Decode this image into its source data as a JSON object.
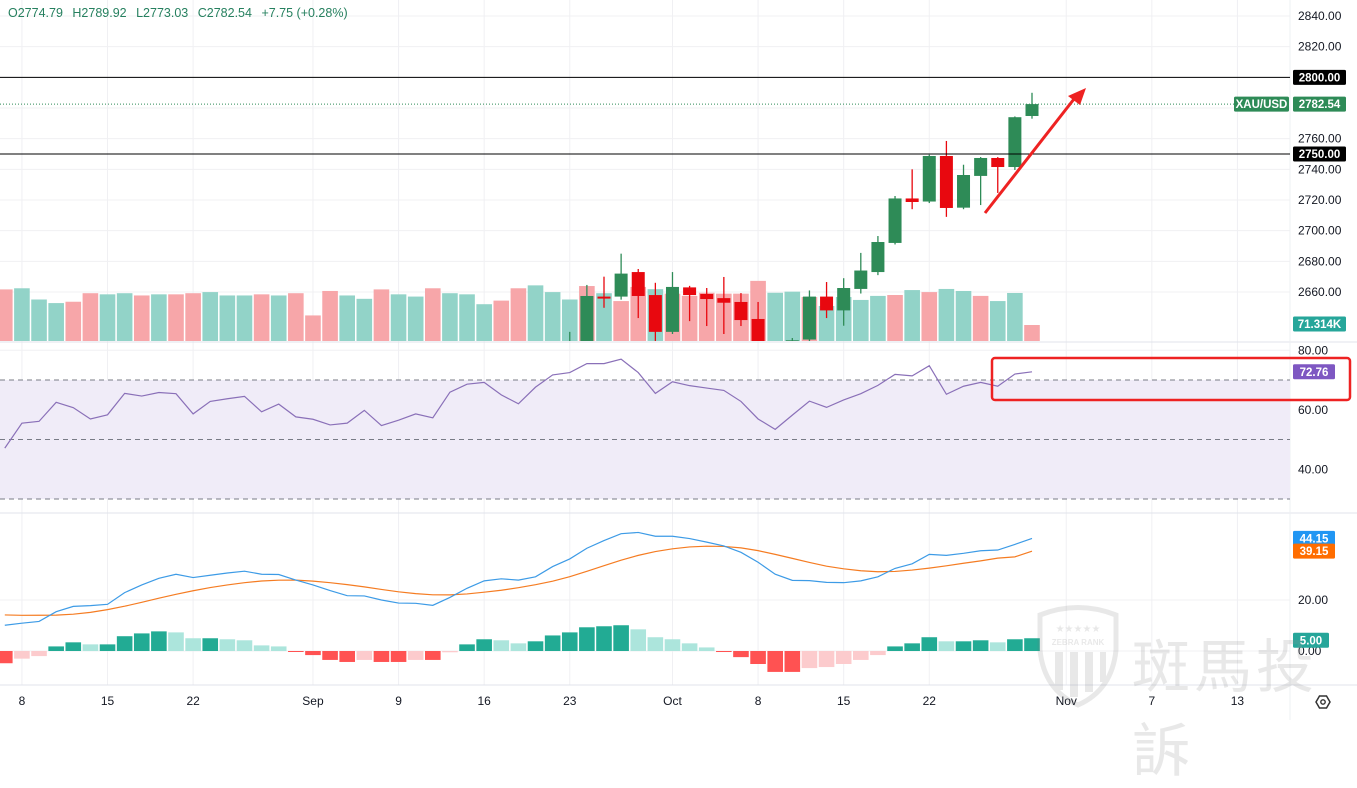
{
  "legend": {
    "open": "O2774.79",
    "high": "H2789.92",
    "low": "L2773.03",
    "close": "C2782.54",
    "change": "+7.75 (+0.28%)"
  },
  "symbol": "XAU/USD",
  "colors": {
    "up": "#2e8b57",
    "down": "#e8080f",
    "vol_up": "#92d3c8",
    "vol_down": "#f7a6a9",
    "rsi": "#8a70b8",
    "rsi_fill": "#f0ecf8",
    "macd": "#3d9be6",
    "signal": "#f57c22",
    "hist_up_strong": "#22ab94",
    "hist_up_weak": "#ace5dc",
    "hist_down_strong": "#ff5252",
    "hist_down_weak": "#fccbcd",
    "annotation": "#ee2222"
  },
  "price_axis": {
    "ticks": [
      "2840.00",
      "2820.00",
      "2760.00",
      "2740.00",
      "2720.00",
      "2700.00",
      "2680.00",
      "2660.00"
    ],
    "lines": [
      {
        "label": "2800.00",
        "value": 2800
      },
      {
        "label": "2750.00",
        "value": 2750
      }
    ],
    "last_price": "2782.54",
    "last_value": 2782.54,
    "volume_label": "71.314K"
  },
  "rsi_axis": {
    "ticks": [
      "80.00",
      "60.00",
      "40.00"
    ],
    "value_label": "72.76",
    "levels": [
      70,
      50,
      30
    ]
  },
  "macd_axis": {
    "ticks": [
      "20.00",
      "0.00"
    ],
    "macd_label": "44.15",
    "signal_label": "39.15",
    "hist_label": "5.00"
  },
  "time_axis": {
    "labels": [
      {
        "t": "8",
        "i": 1
      },
      {
        "t": "15",
        "i": 6
      },
      {
        "t": "22",
        "i": 11
      },
      {
        "t": "Sep",
        "i": 18
      },
      {
        "t": "9",
        "i": 23
      },
      {
        "t": "16",
        "i": 28
      },
      {
        "t": "23",
        "i": 33
      },
      {
        "t": "Oct",
        "i": 39
      },
      {
        "t": "8",
        "i": 44
      },
      {
        "t": "15",
        "i": 49
      },
      {
        "t": "22",
        "i": 54
      },
      {
        "t": "Nov",
        "i": 62
      },
      {
        "t": "7",
        "i": 67
      },
      {
        "t": "13",
        "i": 72
      }
    ]
  },
  "watermark": {
    "brand": "ZEBRA RANK",
    "text": "斑馬投訴"
  },
  "chart_data": {
    "type": "candlestick",
    "price_range": [
      2630,
      2845
    ],
    "candles_start_index": 33,
    "candles": [
      [
        2620,
        2634,
        2615,
        2628
      ],
      [
        2622,
        2664.6,
        2618,
        2657.4
      ],
      [
        2657,
        2670,
        2649.7,
        2656.5
      ],
      [
        2657,
        2685,
        2655,
        2672
      ],
      [
        2673,
        2675,
        2643,
        2657.4
      ],
      [
        2658,
        2666,
        2627,
        2634
      ],
      [
        2634,
        2673,
        2632.6,
        2663.3
      ],
      [
        2663,
        2664,
        2641,
        2658
      ],
      [
        2658.7,
        2662.6,
        2637.8,
        2655.4
      ],
      [
        2656,
        2669.8,
        2632.6,
        2653
      ],
      [
        2653.5,
        2659.3,
        2637.8,
        2641.7
      ],
      [
        2642.4,
        2653.5,
        2605,
        2610
      ],
      [
        2610,
        2622,
        2600,
        2605
      ],
      [
        2605,
        2630,
        2600,
        2628.5
      ],
      [
        2629,
        2661,
        2627,
        2657
      ],
      [
        2657,
        2666.5,
        2643,
        2648
      ],
      [
        2648,
        2669,
        2638,
        2662.6
      ],
      [
        2662,
        2685.5,
        2659,
        2674
      ],
      [
        2673,
        2696.5,
        2671,
        2692.6
      ],
      [
        2692,
        2722.6,
        2691,
        2721
      ],
      [
        2721,
        2740,
        2714,
        2718.7
      ],
      [
        2719,
        2749.5,
        2718,
        2748.7
      ],
      [
        2748.7,
        2758.5,
        2709,
        2714.8
      ],
      [
        2715,
        2743,
        2714,
        2736.3
      ],
      [
        2735.7,
        2748,
        2716.7,
        2747.4
      ],
      [
        2747.4,
        2748,
        2724.6,
        2741.5
      ],
      [
        2741.5,
        2774.5,
        2739.6,
        2774
      ],
      [
        2774.79,
        2789.92,
        2773.03,
        2782.54
      ]
    ],
    "volume_k": [
      230,
      235,
      185,
      169,
      175,
      213,
      208,
      213,
      203,
      208,
      208,
      213,
      218,
      203,
      203,
      208,
      203,
      213,
      114,
      223,
      203,
      188,
      230,
      208,
      198,
      235,
      213,
      208,
      164,
      180,
      235,
      248,
      218,
      185,
      245,
      213,
      178,
      241,
      231,
      211,
      201,
      215,
      211,
      211,
      268,
      215,
      220,
      196,
      156,
      196,
      183,
      201,
      205,
      227,
      218,
      232,
      223,
      201,
      178,
      214,
      71.314
    ],
    "volume_dir": "dgggddggdgddgggdgdddggdggdgggddgggdgddgddddddggdggggdgdggdgg",
    "rsi": [
      47.1,
      55.5,
      56.1,
      62.5,
      60.7,
      56.9,
      58.3,
      65.5,
      64.6,
      65.8,
      65.4,
      58.6,
      62.8,
      63.7,
      64.5,
      59.3,
      61.9,
      57.6,
      56.8,
      54.9,
      55.5,
      59.8,
      54.7,
      56.5,
      58.6,
      57.3,
      65.9,
      68.6,
      69.2,
      65.0,
      62.0,
      67.6,
      71.7,
      72.5,
      75.5,
      75.5,
      77.0,
      72.5,
      65.5,
      69.4,
      68.1,
      67.3,
      66.5,
      62.8,
      56.9,
      53.4,
      58.2,
      62.9,
      60.8,
      63.3,
      65.4,
      68.2,
      71.9,
      71.4,
      74.8,
      65.2,
      67.9,
      69.2,
      67.9,
      72.0,
      72.76
    ],
    "macd": [
      10.1,
      10.9,
      11.6,
      15.4,
      17.5,
      17.8,
      18.3,
      22.9,
      25.9,
      28.5,
      30.1,
      28.8,
      29.7,
      30.6,
      31.3,
      30.1,
      30.0,
      27.8,
      25.9,
      23.7,
      21.7,
      21.6,
      20.0,
      18.8,
      18.7,
      17.9,
      21.0,
      24.6,
      27.5,
      28.3,
      27.8,
      29.1,
      33.1,
      36.1,
      40.3,
      43.3,
      46.0,
      46.5,
      45.0,
      45.0,
      44.1,
      42.7,
      41.2,
      38.7,
      34.8,
      30.1,
      27.7,
      27.6,
      26.9,
      26.8,
      27.5,
      29.1,
      32.4,
      34.2,
      37.9,
      37.5,
      38.3,
      39.3,
      39.6,
      41.8,
      44.15
    ],
    "histogram": [
      -4.8,
      -3.0,
      -2.0,
      1.8,
      3.4,
      2.6,
      2.6,
      5.8,
      6.9,
      7.7,
      7.3,
      5.0,
      5.0,
      4.6,
      4.2,
      2.2,
      1.8,
      -0.3,
      -1.6,
      -3.5,
      -4.3,
      -3.5,
      -4.3,
      -4.3,
      -3.5,
      -3.5,
      -0.5,
      2.6,
      4.6,
      4.2,
      3.0,
      3.8,
      6.1,
      7.3,
      9.3,
      9.7,
      10.1,
      8.5,
      5.4,
      4.6,
      3.0,
      1.4,
      -0.4,
      -2.4,
      -5.1,
      -8.2,
      -8.2,
      -6.7,
      -6.3,
      -5.1,
      -3.5,
      -1.6,
      1.8,
      3.0,
      5.4,
      3.8,
      3.8,
      4.2,
      3.4,
      4.6,
      5.0
    ]
  }
}
